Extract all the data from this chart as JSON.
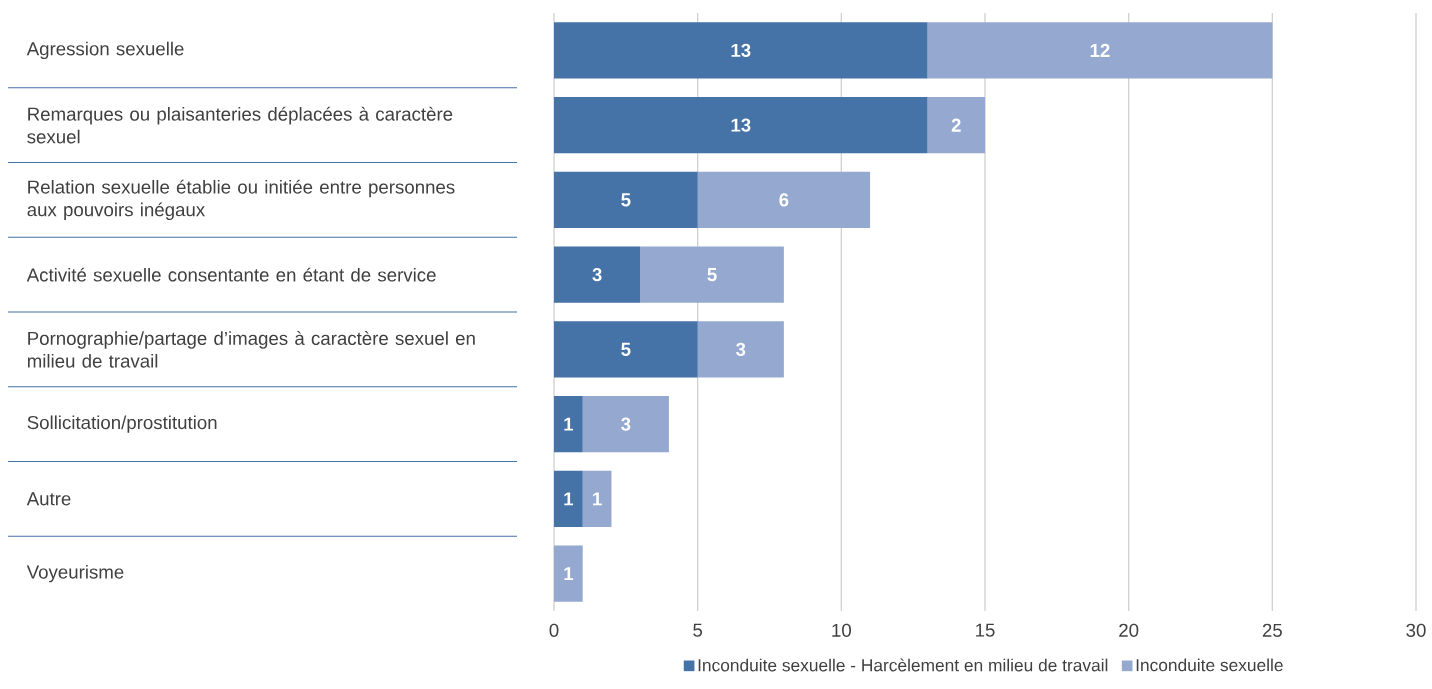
{
  "chart_data": {
    "type": "bar",
    "orientation": "horizontal",
    "stacked": true,
    "categories": [
      "Agression sexuelle",
      "Remarques ou plaisanteries déplacées à caractère sexuel",
      "Relation sexuelle établie ou initiée entre personnes aux pouvoirs inégaux",
      "Activité sexuelle consentante en étant de service",
      "Pornographie/partage d’images à caractère sexuel en milieu de travail",
      "Sollicitation/prostitution",
      "Autre",
      "Voyeurisme"
    ],
    "series": [
      {
        "name": "Inconduite sexuelle - Harcèlement en milieu de travail",
        "color": "#4572a7",
        "values": [
          13,
          13,
          5,
          3,
          5,
          1,
          1,
          null
        ]
      },
      {
        "name": "Inconduite sexuelle",
        "color": "#95a9d0",
        "values": [
          12,
          2,
          6,
          5,
          3,
          3,
          1,
          1
        ]
      }
    ],
    "xlim": [
      0,
      30
    ],
    "xticks": [
      0,
      5,
      10,
      15,
      20,
      25,
      30
    ],
    "grid": "x",
    "legend": "bottom",
    "data_labels": true
  }
}
